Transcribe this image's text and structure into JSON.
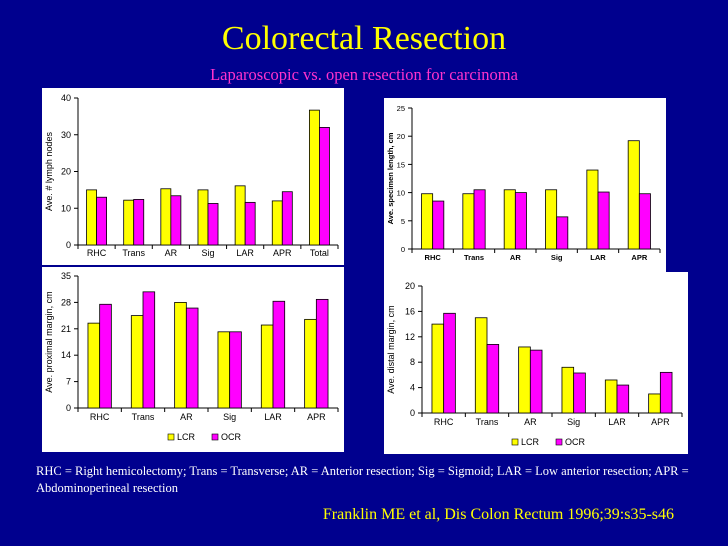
{
  "slide": {
    "title": "Colorectal Resection",
    "subtitle": "Laparoscopic vs. open resection for carcinoma",
    "abbreviations": "RHC = Right hemicolectomy; Trans = Transverse; AR = Anterior resection; Sig = Sigmoid; LAR = Low anterior resection; APR = Abdominoperineal resection",
    "citation": "Franklin ME et al, Dis Colon Rectum 1996;39:s35-s46"
  },
  "colors": {
    "background": "#00008e",
    "lcr": "#ffff00",
    "ocr": "#ff00ff",
    "title": "#ffff00",
    "subtitle": "#ff33cc"
  },
  "chart_data": [
    {
      "type": "bar",
      "ylabel": "Ave. # lymph nodes",
      "xlabel": "",
      "ylim": [
        0,
        40
      ],
      "yticks": [
        0,
        10,
        20,
        30,
        40
      ],
      "categories": [
        "RHC",
        "Trans",
        "AR",
        "Sig",
        "LAR",
        "APR",
        "Total"
      ],
      "series": [
        {
          "name": "LCR",
          "values": [
            15,
            12.2,
            15.3,
            15,
            16.1,
            12,
            36.7
          ]
        },
        {
          "name": "OCR",
          "values": [
            13,
            12.4,
            13.4,
            11.3,
            11.6,
            14.5,
            32
          ]
        }
      ],
      "legend": "none"
    },
    {
      "type": "bar",
      "ylabel": "Ave. specimen length, cm",
      "xlabel": "",
      "ylim": [
        0,
        25
      ],
      "yticks": [
        0,
        5,
        10,
        15,
        20,
        25
      ],
      "categories": [
        "RHC",
        "Trans",
        "AR",
        "Sig",
        "LAR",
        "APR"
      ],
      "series": [
        {
          "name": "LCR",
          "values": [
            9.8,
            9.8,
            10.5,
            10.5,
            14,
            19.2
          ]
        },
        {
          "name": "OCR",
          "values": [
            8.5,
            10.5,
            10,
            5.7,
            10.1,
            9.8
          ]
        }
      ],
      "legend": "none"
    },
    {
      "type": "bar",
      "ylabel": "Ave. proximal margin, cm",
      "xlabel": "",
      "ylim": [
        0,
        35
      ],
      "yticks": [
        0,
        7,
        14,
        21,
        28,
        35
      ],
      "categories": [
        "RHC",
        "Trans",
        "AR",
        "Sig",
        "LAR",
        "APR"
      ],
      "series": [
        {
          "name": "LCR",
          "values": [
            22.5,
            24.5,
            28,
            20.2,
            22,
            23.5
          ]
        },
        {
          "name": "OCR",
          "values": [
            27.5,
            30.8,
            26.5,
            20.2,
            28.3,
            28.8
          ]
        }
      ],
      "legend": "bottom"
    },
    {
      "type": "bar",
      "ylabel": "Ave. distal margin, cm",
      "xlabel": "",
      "ylim": [
        0,
        20
      ],
      "yticks": [
        0,
        4,
        8,
        12,
        16,
        20
      ],
      "categories": [
        "RHC",
        "Trans",
        "AR",
        "Sig",
        "LAR",
        "APR"
      ],
      "series": [
        {
          "name": "LCR",
          "values": [
            14,
            15,
            10.4,
            7.2,
            5.2,
            3
          ]
        },
        {
          "name": "OCR",
          "values": [
            15.7,
            10.8,
            9.9,
            6.3,
            4.4,
            6.4
          ]
        }
      ],
      "legend": "bottom"
    }
  ]
}
